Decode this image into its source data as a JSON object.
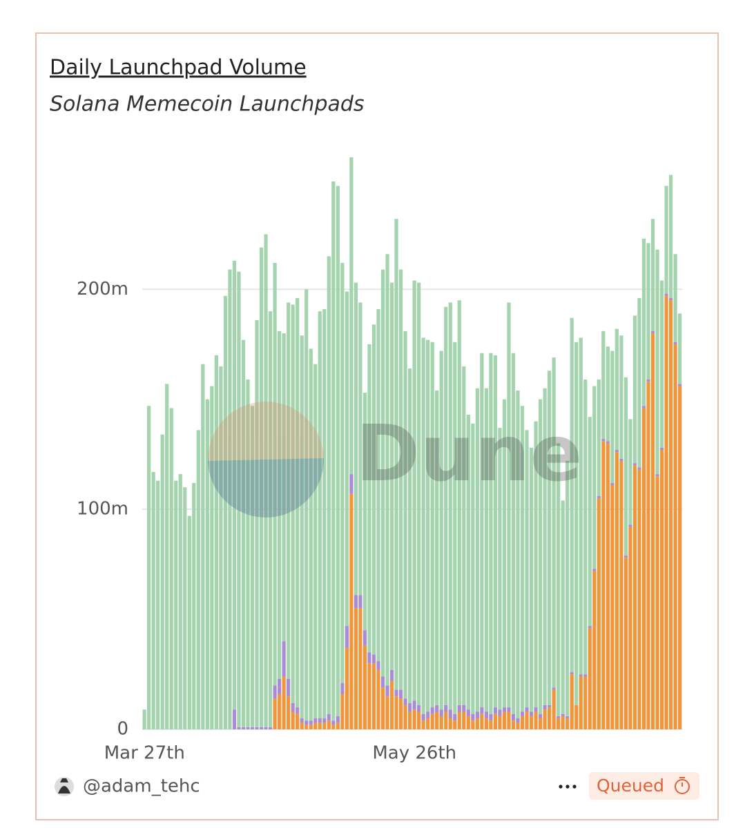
{
  "chart_data": {
    "type": "bar",
    "stacked": true,
    "title": "Daily Launchpad Volume",
    "subtitle": "Solana Memecoin Launchpads",
    "categories": [
      "Mar 27th",
      null,
      null,
      null,
      null,
      null,
      null,
      null,
      null,
      null,
      null,
      null,
      null,
      null,
      null,
      null,
      null,
      null,
      null,
      null,
      null,
      null,
      null,
      null,
      null,
      null,
      null,
      null,
      null,
      null,
      null,
      null,
      null,
      null,
      null,
      null,
      null,
      null,
      null,
      null,
      null,
      null,
      null,
      null,
      null,
      null,
      null,
      null,
      null,
      null,
      null,
      null,
      null,
      null,
      null,
      null,
      null,
      null,
      null,
      null,
      "May 26th",
      null,
      null,
      null,
      null,
      null,
      null,
      null,
      null,
      null,
      null,
      null,
      null,
      null,
      null,
      null,
      null,
      null,
      null,
      null,
      null,
      null,
      null,
      null,
      null,
      null,
      null,
      null,
      null,
      null,
      null,
      null,
      null,
      null,
      null,
      null,
      null,
      null,
      null,
      null,
      null,
      null,
      null,
      null,
      null,
      null,
      null,
      null,
      null,
      null,
      null,
      null,
      null,
      null,
      null,
      null,
      null,
      null,
      null,
      null
    ],
    "series": [
      {
        "color": "#f0953a",
        "values": [
          0,
          0,
          0,
          0,
          0,
          0,
          0,
          0,
          0,
          0,
          0,
          0,
          0,
          0,
          0,
          0,
          0,
          0,
          0,
          0,
          0,
          0,
          0,
          0,
          0,
          0,
          0,
          0,
          0,
          14000000.0,
          16000000.0,
          24000000.0,
          15000000.0,
          8000000.0,
          7000000.0,
          3000000.0,
          2000000.0,
          2000000.0,
          3000000.0,
          3000000.0,
          3000000.0,
          4000000.0,
          2000000.0,
          3000000.0,
          16000000.0,
          37000000.0,
          107000000.0,
          55000000.0,
          55000000.0,
          38000000.0,
          30000000.0,
          30000000.0,
          27000000.0,
          19000000.0,
          15000000.0,
          22000000.0,
          15000000.0,
          14000000.0,
          11000000.0,
          8000000.0,
          9000000.0,
          8000000.0,
          4000000.0,
          5000000.0,
          7000000.0,
          8000000.0,
          6000000.0,
          8000000.0,
          5000000.0,
          4000000.0,
          8000000.0,
          8000000.0,
          6000000.0,
          4000000.0,
          5000000.0,
          7000000.0,
          5000000.0,
          4000000.0,
          7000000.0,
          6000000.0,
          8000000.0,
          8000000.0,
          4000000.0,
          3000000.0,
          6000000.0,
          8000000.0,
          6000000.0,
          8000000.0,
          5000000.0,
          9000000.0,
          10000000.0,
          18000000.0,
          5000000.0,
          6000000.0,
          5000000.0,
          25000000.0,
          11000000.0,
          24000000.0,
          24000000.0,
          46000000.0,
          72000000.0,
          105000000.0,
          131000000.0,
          130000000.0,
          111000000.0,
          126000000.0,
          122000000.0,
          78000000.0,
          92000000.0,
          120000000.0,
          118000000.0,
          146000000.0,
          158000000.0,
          180000000.0,
          115000000.0,
          127000000.0,
          197000000.0,
          195000000.0,
          175000000.0,
          156000000.0
        ]
      },
      {
        "color": "#a98bd6",
        "values": [
          0,
          0,
          0,
          0,
          0,
          0,
          0,
          0,
          0,
          0,
          0,
          0,
          0,
          0,
          0,
          0,
          0,
          0,
          0,
          0,
          9000000.0,
          1000000.0,
          1000000.0,
          1000000.0,
          1000000.0,
          1000000.0,
          1000000.0,
          1000000.0,
          1000000.0,
          6000000.0,
          7000000.0,
          16000000.0,
          8000000.0,
          4000000.0,
          3000000.0,
          2000000.0,
          2000000.0,
          2000000.0,
          2000000.0,
          2000000.0,
          2000000.0,
          3000000.0,
          2000000.0,
          3000000.0,
          5000000.0,
          10000000.0,
          9000000.0,
          6000000.0,
          6000000.0,
          7000000.0,
          5000000.0,
          4000000.0,
          4000000.0,
          5000000.0,
          5000000.0,
          5000000.0,
          3000000.0,
          4000000.0,
          3000000.0,
          4000000.0,
          4000000.0,
          3000000.0,
          3000000.0,
          3000000.0,
          3000000.0,
          3000000.0,
          3000000.0,
          3000000.0,
          4000000.0,
          3000000.0,
          3000000.0,
          3000000.0,
          3000000.0,
          3000000.0,
          3000000.0,
          3000000.0,
          3000000.0,
          3000000.0,
          3000000.0,
          3000000.0,
          2000000.0,
          2000000.0,
          3000000.0,
          2000000.0,
          2000000.0,
          2000000.0,
          2000000.0,
          2000000.0,
          2000000.0,
          2000000.0,
          1000000.0,
          1000000.0,
          1000000.0,
          1000000.0,
          1000000.0,
          1000000.0,
          0,
          1000000.0,
          1000000.0,
          1000000.0,
          1000000.0,
          1000000.0,
          1000000.0,
          1000000.0,
          1000000.0,
          1000000.0,
          1000000.0,
          1000000.0,
          1000000.0,
          1000000.0,
          1000000.0,
          1000000.0,
          1000000.0,
          1000000.0,
          1000000.0,
          1000000.0,
          1000000.0,
          1000000.0,
          1000000.0,
          1000000.0
        ]
      },
      {
        "color": "#a3d4ad",
        "values": [
          9000000.0,
          147000000.0,
          117000000.0,
          113000000.0,
          134000000.0,
          157000000.0,
          146000000.0,
          113000000.0,
          116000000.0,
          110000000.0,
          97000000.0,
          112000000.0,
          136000000.0,
          166000000.0,
          150000000.0,
          156000000.0,
          170000000.0,
          165000000.0,
          197000000.0,
          209000000.0,
          204000000.0,
          207000000.0,
          176000000.0,
          158000000.0,
          146000000.0,
          185000000.0,
          218000000.0,
          224000000.0,
          189000000.0,
          192000000.0,
          158000000.0,
          140000000.0,
          171000000.0,
          181000000.0,
          186000000.0,
          174000000.0,
          196000000.0,
          169000000.0,
          161000000.0,
          185000000.0,
          186000000.0,
          208000000.0,
          245000000.0,
          241000000.0,
          191000000.0,
          152000000.0,
          144000000.0,
          142000000.0,
          133000000.0,
          108000000.0,
          140000000.0,
          150000000.0,
          160000000.0,
          185000000.0,
          196000000.0,
          176000000.0,
          214000000.0,
          191000000.0,
          167000000.0,
          152000000.0,
          191000000.0,
          192000000.0,
          171000000.0,
          169000000.0,
          166000000.0,
          143000000.0,
          163000000.0,
          181000000.0,
          185000000.0,
          169000000.0,
          184000000.0,
          154000000.0,
          134000000.0,
          132000000.0,
          147000000.0,
          161000000.0,
          147000000.0,
          164000000.0,
          160000000.0,
          128000000.0,
          140000000.0,
          184000000.0,
          164000000.0,
          149000000.0,
          139000000.0,
          126000000.0,
          120000000.0,
          130000000.0,
          143000000.0,
          144000000.0,
          152000000.0,
          150000000.0,
          124000000.0,
          97000000.0,
          116000000.0,
          161000000.0,
          165000000.0,
          153000000.0,
          134000000.0,
          95000000.0,
          83000000.0,
          53000000.0,
          49000000.0,
          43000000.0,
          60000000.0,
          55000000.0,
          56000000.0,
          81000000.0,
          48000000.0,
          67000000.0,
          77000000.0,
          76000000.0,
          62000000.0,
          51000000.0,
          102000000.0,
          76000000.0,
          49000000.0,
          56000000.0,
          40000000.0,
          32000000.0
        ]
      }
    ],
    "ylim": [
      0,
      265000000.0
    ],
    "yticks": [
      0,
      {
        "value": 100000000.0,
        "label": "100m"
      },
      {
        "value": 200000000.0,
        "label": "200m"
      }
    ],
    "grid": true
  },
  "watermark": "Dune",
  "footer": {
    "author": "@adam_tehc",
    "status": "Queued"
  }
}
